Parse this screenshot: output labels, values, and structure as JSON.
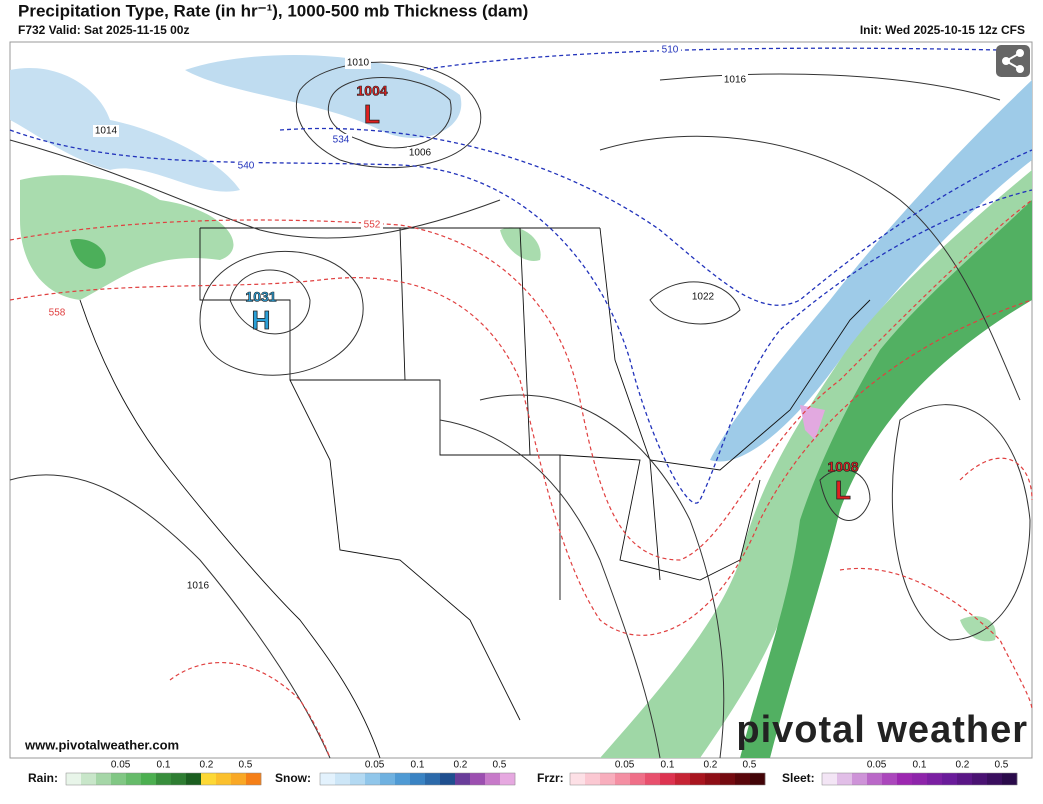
{
  "header": {
    "title": "Precipitation Type, Rate (in hr⁻¹), 1000-500 mb Thickness (dam)",
    "valid": "F732 Valid: Sat 2025-11-15 00z",
    "init": "Init: Wed 2025-10-15 12z CFS"
  },
  "map": {
    "isobar_labels": [
      "1010",
      "1014",
      "1006",
      "1016",
      "1022",
      "1016"
    ],
    "thickness_labels": [
      "510",
      "534",
      "540",
      "552",
      "558"
    ],
    "pressure_centers": [
      {
        "symbol": "L",
        "value": "1004"
      },
      {
        "symbol": "H",
        "value": "1031"
      },
      {
        "symbol": "L",
        "value": "1008"
      }
    ],
    "website": "www.pivotalweather.com",
    "watermark": "pivotal weather"
  },
  "legend": [
    {
      "name": "Rain:",
      "ticks": [
        "0.05",
        "0.1",
        "0.2",
        "0.5"
      ]
    },
    {
      "name": "Snow:",
      "ticks": [
        "0.05",
        "0.1",
        "0.2",
        "0.5"
      ]
    },
    {
      "name": "Frzr:",
      "ticks": [
        "0.05",
        "0.1",
        "0.2",
        "0.5"
      ]
    },
    {
      "name": "Sleet:",
      "ticks": [
        "0.05",
        "0.1",
        "0.2",
        "0.5"
      ]
    }
  ]
}
